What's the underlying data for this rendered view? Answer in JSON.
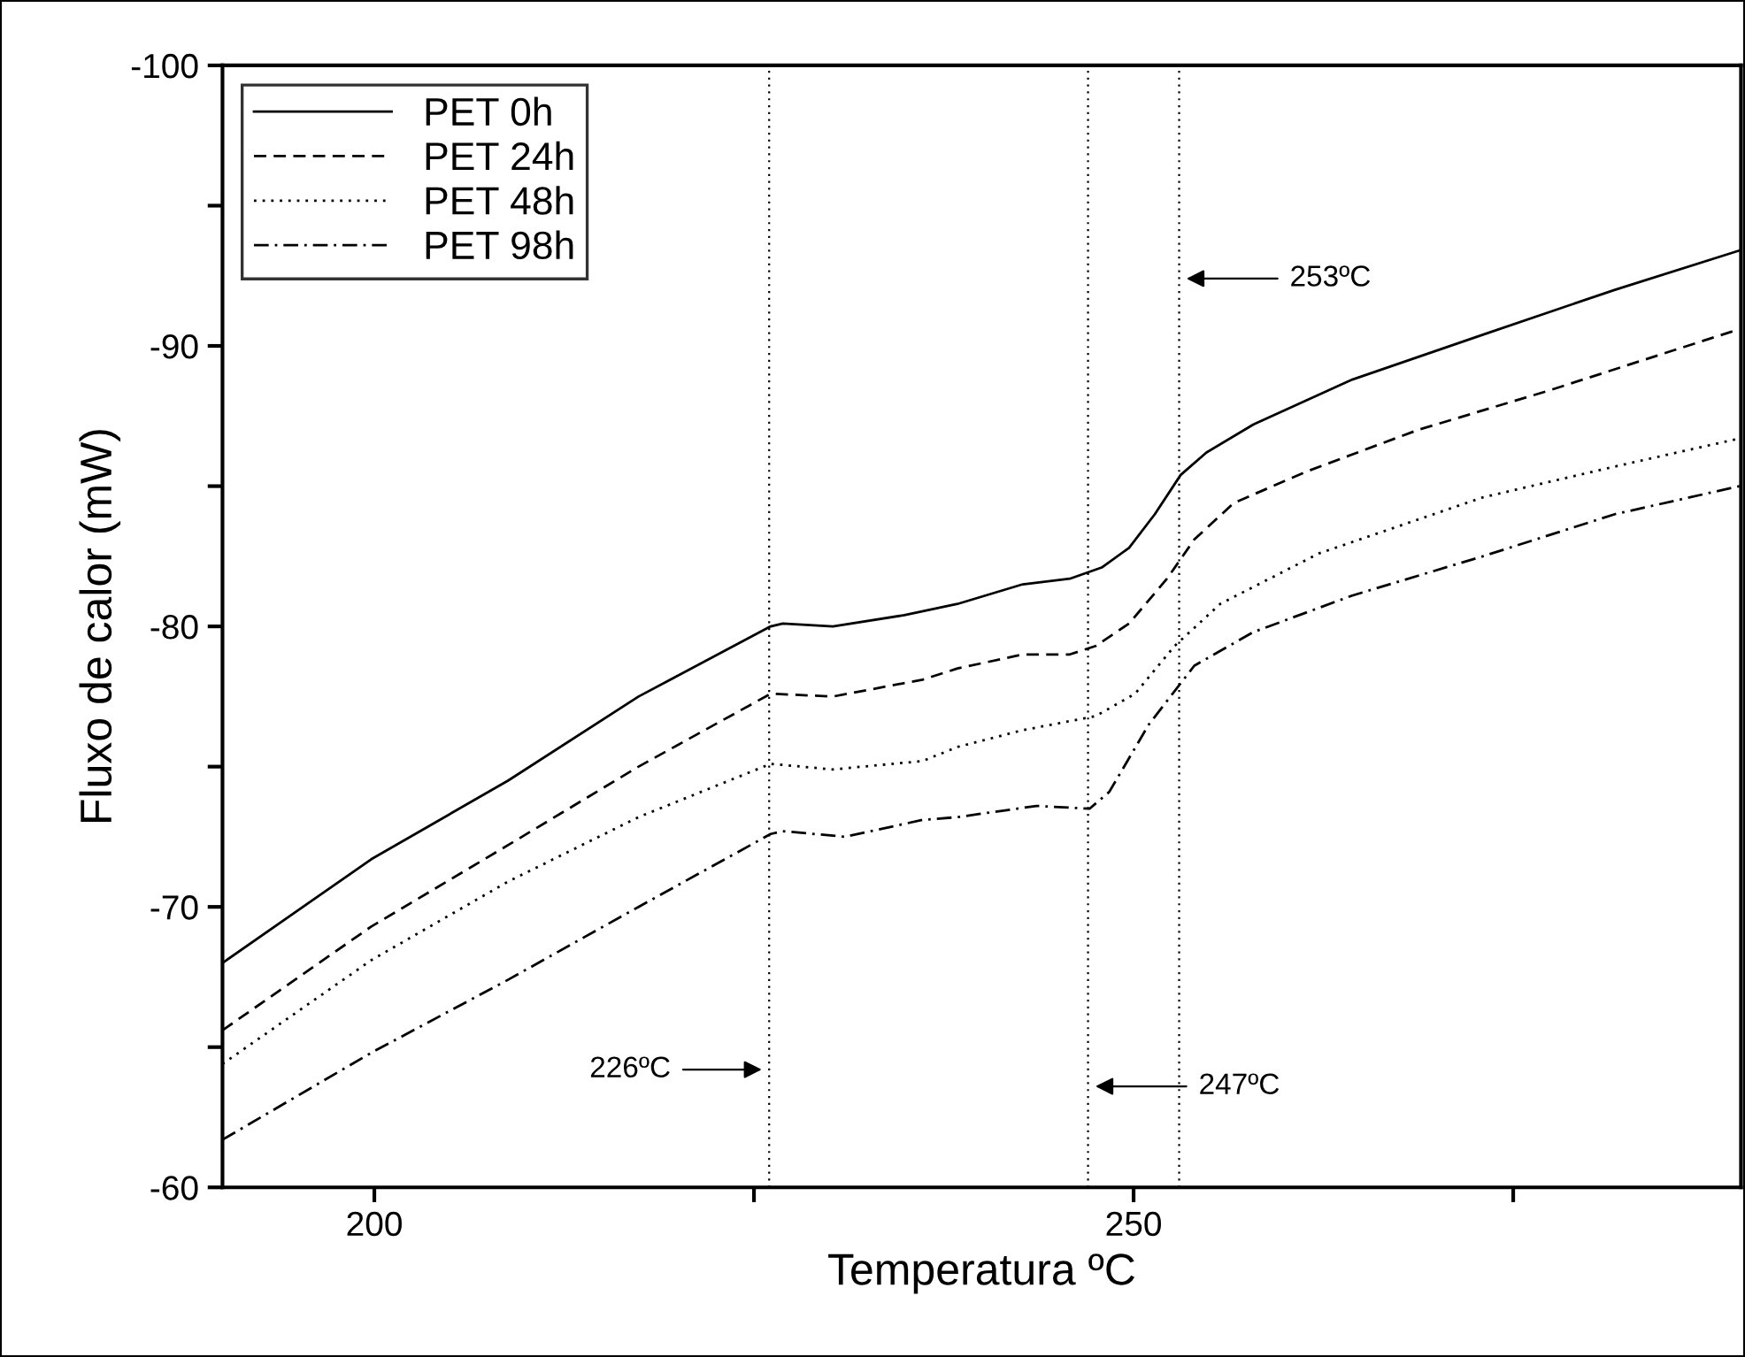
{
  "chart_data": {
    "type": "line",
    "xlabel": "Temperatura ºC",
    "ylabel": "Fluxo de calor (mW)",
    "xlim": [
      190,
      290
    ],
    "ylim": [
      -60,
      -100
    ],
    "xticks": [
      200,
      {
        "value": 225,
        "label": null
      },
      250,
      {
        "value": 275,
        "label": null
      }
    ],
    "yticks": [
      -100,
      {
        "value": -95,
        "label": null
      },
      -90,
      {
        "value": -85,
        "label": null
      },
      -80,
      {
        "value": -75,
        "label": null
      },
      -70,
      {
        "value": -65,
        "label": null
      },
      -60
    ],
    "grid": false,
    "legend": "top left",
    "series": [
      {
        "name": "PET 0h",
        "color": "#000000",
        "line_style": "solid",
        "x": [
          190,
          199.8,
          208.8,
          217.4,
          226.1,
          226.9,
          230.2,
          234.9,
          238.4,
          242.7,
          245.8,
          247.9,
          249.7,
          251.4,
          253.1,
          254.8,
          257.9,
          264.4,
          273.0,
          281.7,
          289.9
        ],
        "values": [
          -68.0,
          -71.7,
          -74.5,
          -77.5,
          -80.0,
          -80.1,
          -80.0,
          -80.4,
          -80.8,
          -81.5,
          -81.7,
          -82.1,
          -82.8,
          -84.0,
          -85.4,
          -86.2,
          -87.2,
          -88.8,
          -90.4,
          -92.0,
          -93.4
        ]
      },
      {
        "name": "PET 24h",
        "color": "#000000",
        "line_style": "dashed",
        "x": [
          190,
          199.8,
          208.8,
          217.4,
          226.1,
          230.2,
          236.1,
          238.4,
          242.7,
          245.8,
          247.5,
          249.7,
          252.2,
          254.0,
          256.6,
          261.3,
          268.7,
          277.3,
          289.9
        ],
        "values": [
          -65.6,
          -69.3,
          -72.2,
          -75.0,
          -77.6,
          -77.5,
          -78.1,
          -78.5,
          -79.0,
          -79.0,
          -79.3,
          -80.1,
          -81.7,
          -83.1,
          -84.4,
          -85.5,
          -87.0,
          -88.4,
          -90.6
        ]
      },
      {
        "name": "PET 48h",
        "color": "#000000",
        "line_style": "dotted",
        "x": [
          190,
          199.8,
          208.8,
          217.4,
          226.1,
          230.2,
          236.1,
          238.4,
          242.7,
          247.5,
          250.1,
          252.7,
          255.7,
          262.2,
          273.0,
          281.7,
          289.9
        ],
        "values": [
          -64.4,
          -68.1,
          -70.9,
          -73.2,
          -75.1,
          -74.9,
          -75.2,
          -75.7,
          -76.3,
          -76.8,
          -77.6,
          -79.3,
          -80.8,
          -82.6,
          -84.6,
          -85.7,
          -86.7
        ]
      },
      {
        "name": "PET 98h",
        "color": "#000000",
        "line_style": "dashdot",
        "x": [
          190,
          199.8,
          208.8,
          217.4,
          226.1,
          226.9,
          231.0,
          236.1,
          238.4,
          243.6,
          247.1,
          248.4,
          251.0,
          254.0,
          257.9,
          264.4,
          273.0,
          281.7,
          289.9
        ],
        "values": [
          -61.7,
          -64.8,
          -67.4,
          -70.0,
          -72.6,
          -72.7,
          -72.5,
          -73.1,
          -73.2,
          -73.6,
          -73.5,
          -74.1,
          -76.5,
          -78.6,
          -79.8,
          -81.1,
          -82.5,
          -84.0,
          -85.0
        ]
      }
    ],
    "ref_lines": [
      {
        "axis": "x",
        "value": 226,
        "label": "226ºC",
        "color": "#000000",
        "line_style": "dotted"
      },
      {
        "axis": "x",
        "value": 247,
        "label": "247ºC",
        "color": "#000000",
        "line_style": "dotted"
      },
      {
        "axis": "x",
        "value": 253,
        "label": "253ºC",
        "color": "#000000",
        "line_style": "dotted"
      }
    ]
  }
}
